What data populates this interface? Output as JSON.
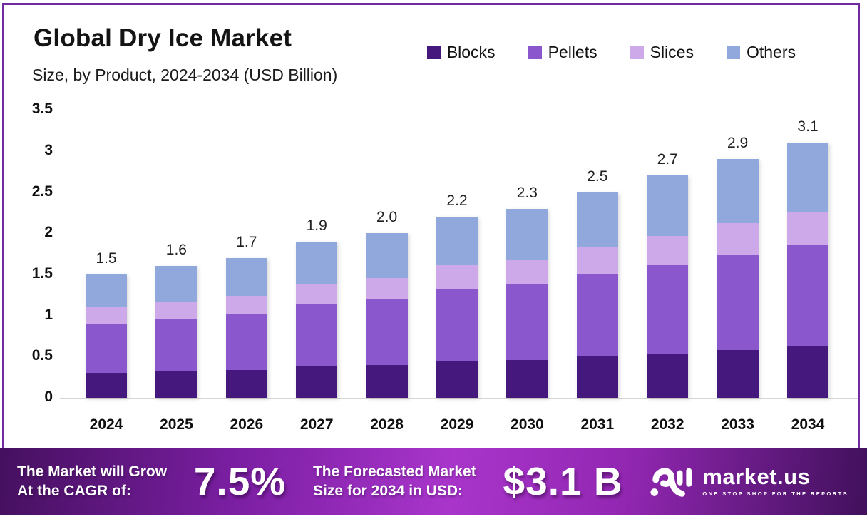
{
  "header": {
    "title": "Global Dry Ice Market",
    "subtitle": "Size, by Product, 2024-2034 (USD Billion)"
  },
  "chart_data": {
    "type": "bar",
    "stacked": true,
    "title": "Global Dry Ice Market",
    "subtitle": "Size, by Product, 2024-2034 (USD Billion)",
    "categories": [
      "2024",
      "2025",
      "2026",
      "2027",
      "2028",
      "2029",
      "2030",
      "2031",
      "2032",
      "2033",
      "2034"
    ],
    "series": [
      {
        "name": "Blocks",
        "color": "#45187d",
        "values": [
          0.3,
          0.32,
          0.34,
          0.38,
          0.4,
          0.44,
          0.46,
          0.5,
          0.54,
          0.58,
          0.62
        ]
      },
      {
        "name": "Pellets",
        "color": "#8a57cd",
        "values": [
          0.6,
          0.64,
          0.68,
          0.76,
          0.8,
          0.88,
          0.92,
          1.0,
          1.08,
          1.16,
          1.24
        ]
      },
      {
        "name": "Slices",
        "color": "#cda9ea",
        "values": [
          0.2,
          0.21,
          0.22,
          0.25,
          0.26,
          0.29,
          0.3,
          0.33,
          0.35,
          0.38,
          0.4
        ]
      },
      {
        "name": "Others",
        "color": "#91a8dc",
        "values": [
          0.4,
          0.43,
          0.46,
          0.51,
          0.54,
          0.59,
          0.62,
          0.67,
          0.73,
          0.78,
          0.84
        ]
      }
    ],
    "total_labels": [
      "1.5",
      "1.6",
      "1.7",
      "1.9",
      "2.0",
      "2.2",
      "2.3",
      "2.5",
      "2.7",
      "2.9",
      "3.1"
    ],
    "y_ticks": [
      "3.5",
      "3",
      "2.5",
      "2",
      "1.5",
      "1",
      "0.5",
      "0"
    ],
    "ylim": [
      0,
      3.5
    ],
    "xlabel": "",
    "ylabel": "",
    "grid": false,
    "legend_position": "top-right"
  },
  "footer": {
    "cagr_label_line1": "The Market will Grow",
    "cagr_label_line2": "At the CAGR of:",
    "cagr_value": "7.5%",
    "forecast_label_line1": "The Forecasted Market",
    "forecast_label_line2": "Size for 2034 in USD:",
    "forecast_value": "$3.1 B",
    "brand": "market.us",
    "brand_tagline": "ONE STOP SHOP FOR THE REPORTS"
  },
  "colors": {
    "card_border": "#722b9e",
    "axis_line": "#d6d6d6",
    "footer_gradient_left": "#45105f",
    "footer_gradient_mid": "#a935cb",
    "footer_gradient_right": "#41105c"
  }
}
